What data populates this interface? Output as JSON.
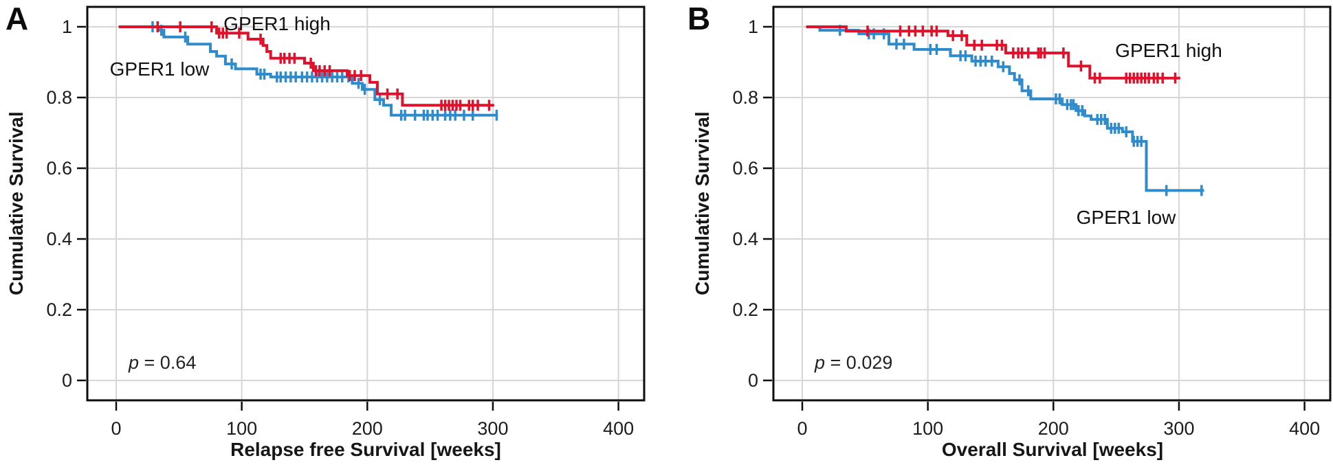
{
  "figure": {
    "background": "#ffffff",
    "axis_color": "#0d0d0d",
    "grid_color": "#d6d6d6",
    "text_color": "#161616"
  },
  "panels": [
    {
      "letter": "A",
      "ylabel": "Cumulative Survival",
      "xlabel": "Relapse free Survival [weeks]",
      "p_sym": "p",
      "p_rest": " = 0.64"
    },
    {
      "letter": "B",
      "ylabel": "Cumulative Survival",
      "xlabel": "Overall Survival [weeks]",
      "p_sym": "p",
      "p_rest": " = 0.029"
    }
  ],
  "chart_data": [
    {
      "type": "line",
      "subtype": "kaplan-meier-step",
      "panel": "A",
      "title": "",
      "xlabel": "Relapse free Survival [weeks]",
      "ylabel": "Cumulative Survival",
      "xlim": [
        -23,
        421
      ],
      "ylim": [
        -0.056,
        1.056
      ],
      "xticks": [
        0,
        100,
        200,
        300,
        400
      ],
      "yticks": [
        0,
        0.2,
        0.4,
        0.6,
        0.8,
        1
      ],
      "grid": true,
      "legend_position": "inline-labels",
      "p_text": "p = 0.64",
      "p_value": 0.64,
      "series": [
        {
          "name": "GPER1 high",
          "color": "#e0112b",
          "steps": [
            [
              2,
              1.0
            ],
            [
              80,
              0.982
            ],
            [
              105,
              0.965
            ],
            [
              117,
              0.947
            ],
            [
              120,
              0.93
            ],
            [
              123,
              0.911
            ],
            [
              150,
              0.897
            ],
            [
              157,
              0.876
            ],
            [
              184,
              0.862
            ],
            [
              202,
              0.843
            ],
            [
              208,
              0.81
            ],
            [
              228,
              0.778
            ]
          ],
          "end": 301,
          "censors": [
            33,
            51,
            76,
            82,
            85,
            88,
            98,
            115,
            131,
            134,
            138,
            142,
            155,
            159,
            162,
            166,
            170,
            186,
            190,
            195,
            216,
            224,
            259,
            262,
            265,
            268,
            271,
            274,
            281,
            284,
            288,
            297
          ]
        },
        {
          "name": "GPER1 low",
          "color": "#2e8ccd",
          "steps": [
            [
              2,
              1.0
            ],
            [
              34,
              0.99
            ],
            [
              38,
              0.971
            ],
            [
              57,
              0.951
            ],
            [
              75,
              0.93
            ],
            [
              80,
              0.917
            ],
            [
              87,
              0.895
            ],
            [
              95,
              0.881
            ],
            [
              112,
              0.866
            ],
            [
              123,
              0.858
            ],
            [
              188,
              0.84
            ],
            [
              196,
              0.823
            ],
            [
              206,
              0.794
            ],
            [
              213,
              0.778
            ],
            [
              219,
              0.75
            ]
          ],
          "end": 304,
          "censors": [
            29,
            36,
            55,
            92,
            115,
            118,
            128,
            131,
            135,
            139,
            143,
            148,
            152,
            156,
            160,
            164,
            168,
            172,
            176,
            180,
            185,
            193,
            198,
            210,
            227,
            230,
            238,
            245,
            248,
            252,
            256,
            262,
            266,
            270,
            277,
            284,
            303
          ]
        }
      ]
    },
    {
      "type": "line",
      "subtype": "kaplan-meier-step",
      "panel": "B",
      "title": "",
      "xlabel": "Overall Survival [weeks]",
      "ylabel": "Cumulative Survival",
      "xlim": [
        -23,
        421
      ],
      "ylim": [
        -0.056,
        1.056
      ],
      "xticks": [
        0,
        100,
        200,
        300,
        400
      ],
      "yticks": [
        0,
        0.2,
        0.4,
        0.6,
        0.8,
        1
      ],
      "grid": true,
      "legend_position": "inline-labels",
      "p_text": "p = 0.029",
      "p_value": 0.029,
      "series": [
        {
          "name": "GPER1 high",
          "color": "#e0112b",
          "steps": [
            [
              3,
              1.0
            ],
            [
              35,
              0.988
            ],
            [
              116,
              0.975
            ],
            [
              131,
              0.948
            ],
            [
              162,
              0.926
            ],
            [
              212,
              0.889
            ],
            [
              229,
              0.855
            ]
          ],
          "end": 301,
          "censors": [
            52,
            78,
            85,
            90,
            96,
            103,
            107,
            120,
            127,
            137,
            143,
            155,
            159,
            168,
            172,
            175,
            180,
            188,
            190,
            193,
            208,
            222,
            233,
            237,
            258,
            261,
            264,
            267,
            270,
            273,
            276,
            280,
            283,
            287,
            297
          ]
        },
        {
          "name": "GPER1 low",
          "color": "#2e8ccd",
          "steps": [
            [
              3,
              1.0
            ],
            [
              14,
              0.99
            ],
            [
              45,
              0.98
            ],
            [
              69,
              0.951
            ],
            [
              89,
              0.936
            ],
            [
              118,
              0.918
            ],
            [
              135,
              0.903
            ],
            [
              156,
              0.887
            ],
            [
              165,
              0.868
            ],
            [
              169,
              0.85
            ],
            [
              175,
              0.819
            ],
            [
              182,
              0.796
            ],
            [
              207,
              0.78
            ],
            [
              218,
              0.763
            ],
            [
              225,
              0.748
            ],
            [
              230,
              0.738
            ],
            [
              243,
              0.713
            ],
            [
              255,
              0.703
            ],
            [
              263,
              0.676
            ],
            [
              274,
              0.537
            ]
          ],
          "end": 320,
          "censors": [
            30,
            53,
            57,
            65,
            75,
            81,
            102,
            107,
            126,
            130,
            138,
            142,
            146,
            151,
            160,
            173,
            180,
            202,
            205,
            211,
            214,
            216,
            220,
            223,
            235,
            238,
            241,
            246,
            249,
            252,
            258,
            264,
            267,
            270,
            290,
            318
          ]
        }
      ]
    }
  ]
}
